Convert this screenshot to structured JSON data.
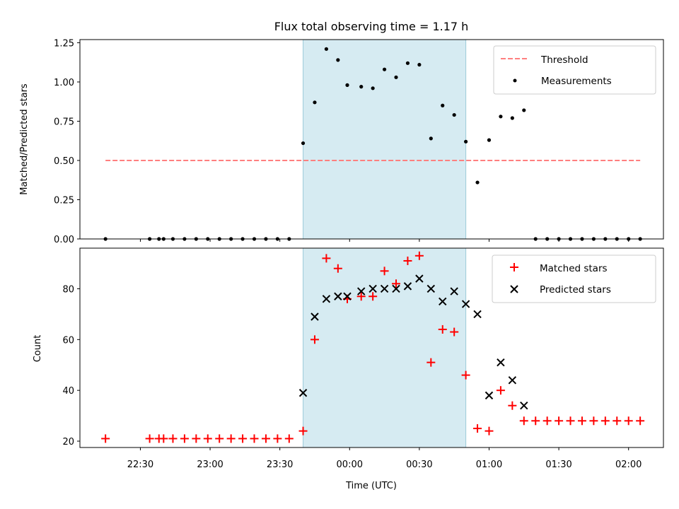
{
  "chart_data": [
    {
      "type": "scatter",
      "title": "Flux total observing time = 1.17 h",
      "ylabel": "Matched/Predicted stars",
      "xlabel": "",
      "xlim": [
        "22:04",
        "02:15"
      ],
      "ylim": [
        0,
        1.27
      ],
      "yticks": [
        "0.00",
        "0.25",
        "0.50",
        "0.75",
        "1.00",
        "1.25"
      ],
      "shaded_interval": [
        "23:40",
        "00:50"
      ],
      "legend_position": "top-right",
      "threshold": {
        "name": "Threshold",
        "color": "#ff7f7f",
        "x": [
          "22:15",
          "02:05"
        ],
        "y": [
          0.5,
          0.5
        ]
      },
      "series": [
        {
          "name": "Measurements",
          "color": "#000000",
          "x": [
            "22:15",
            "22:34",
            "22:38",
            "22:40",
            "22:44",
            "22:49",
            "22:54",
            "22:59",
            "23:04",
            "23:09",
            "23:14",
            "23:19",
            "23:24",
            "23:29",
            "23:34",
            "23:40",
            "23:45",
            "23:50",
            "23:55",
            "23:59",
            "00:05",
            "00:10",
            "00:15",
            "00:20",
            "00:25",
            "00:30",
            "00:35",
            "00:40",
            "00:45",
            "00:50",
            "00:55",
            "01:00",
            "01:05",
            "01:10",
            "01:15",
            "01:20",
            "01:25",
            "01:30",
            "01:35",
            "01:40",
            "01:45",
            "01:50",
            "01:55",
            "02:00",
            "02:05"
          ],
          "y": [
            0,
            0,
            0,
            0,
            0,
            0,
            0,
            0,
            0,
            0,
            0,
            0,
            0,
            0,
            0,
            0.61,
            0.87,
            1.21,
            1.14,
            0.98,
            0.97,
            0.96,
            1.08,
            1.03,
            1.12,
            1.11,
            0.64,
            0.85,
            0.79,
            0.62,
            0.36,
            0.63,
            0.78,
            0.77,
            0.82,
            0,
            0,
            0,
            0,
            0,
            0,
            0,
            0,
            0,
            0
          ]
        }
      ]
    },
    {
      "type": "scatter",
      "title": "",
      "ylabel": "Count",
      "xlabel": "Time (UTC)",
      "xlim": [
        "22:04",
        "02:15"
      ],
      "ylim": [
        17.5,
        96
      ],
      "yticks": [
        "20",
        "40",
        "60",
        "80"
      ],
      "xticks": [
        "22:30",
        "23:00",
        "23:30",
        "00:00",
        "00:30",
        "01:00",
        "01:30",
        "02:00"
      ],
      "shaded_interval": [
        "23:40",
        "00:50"
      ],
      "legend_position": "top-right",
      "series": [
        {
          "name": "Matched stars",
          "color": "#ff0000",
          "x": [
            "22:15",
            "22:34",
            "22:38",
            "22:40",
            "22:44",
            "22:49",
            "22:54",
            "22:59",
            "23:04",
            "23:09",
            "23:14",
            "23:19",
            "23:24",
            "23:29",
            "23:34",
            "23:40",
            "23:45",
            "23:50",
            "23:55",
            "23:59",
            "00:05",
            "00:10",
            "00:15",
            "00:20",
            "00:25",
            "00:30",
            "00:35",
            "00:40",
            "00:45",
            "00:50",
            "00:55",
            "01:00",
            "01:05",
            "01:10",
            "01:15",
            "01:20",
            "01:25",
            "01:30",
            "01:35",
            "01:40",
            "01:45",
            "01:50",
            "01:55",
            "02:00",
            "02:05"
          ],
          "y": [
            21,
            21,
            21,
            21,
            21,
            21,
            21,
            21,
            21,
            21,
            21,
            21,
            21,
            21,
            21,
            24,
            60,
            92,
            88,
            76,
            77,
            77,
            87,
            82,
            91,
            93,
            51,
            64,
            63,
            46,
            25,
            24,
            40,
            34,
            28,
            28,
            28,
            28,
            28,
            28,
            28,
            28,
            28,
            28,
            28
          ]
        },
        {
          "name": "Predicted stars",
          "color": "#000000",
          "x": [
            "23:40",
            "23:45",
            "23:50",
            "23:55",
            "23:59",
            "00:05",
            "00:10",
            "00:15",
            "00:20",
            "00:25",
            "00:30",
            "00:35",
            "00:40",
            "00:45",
            "00:50",
            "00:55",
            "01:00",
            "01:05",
            "01:10",
            "01:15"
          ],
          "y": [
            39,
            69,
            76,
            77,
            77,
            79,
            80,
            80,
            80,
            81,
            84,
            80,
            75,
            79,
            74,
            70,
            38,
            51,
            44,
            34
          ]
        }
      ]
    }
  ]
}
